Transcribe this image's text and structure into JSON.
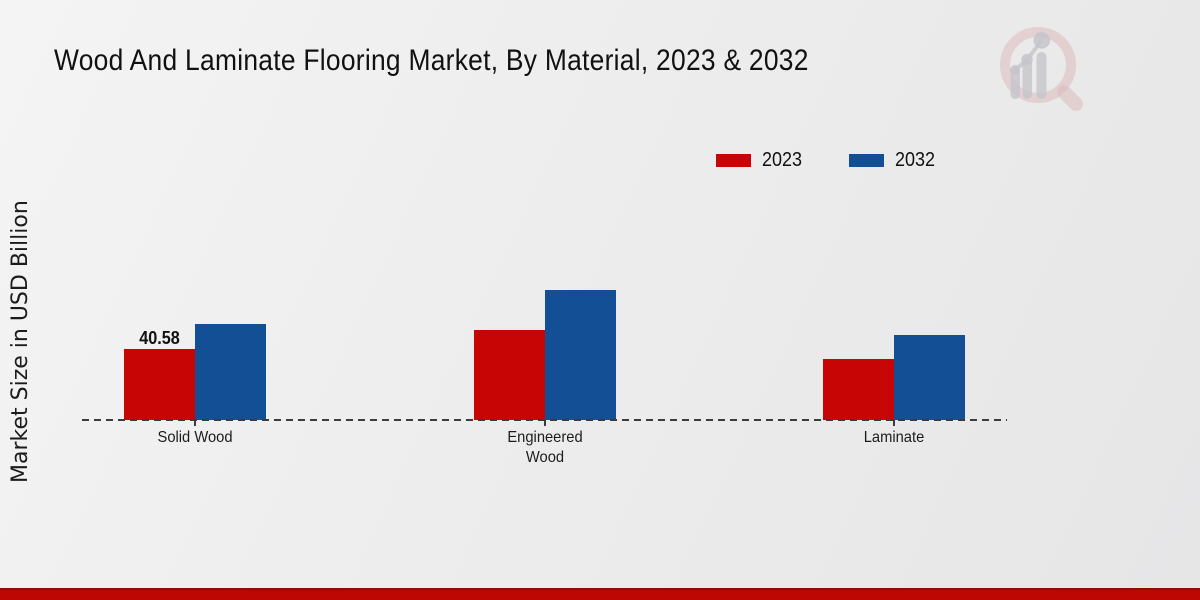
{
  "title": "Wood And Laminate Flooring Market, By Material, 2023 & 2032",
  "ylabel": "Market Size in USD Billion",
  "legend": [
    {
      "label": "2023",
      "color": "#c80505"
    },
    {
      "label": "2032",
      "color": "#124f94"
    }
  ],
  "colors": {
    "red_2023": "#c80505",
    "blue_2032": "#124f94",
    "baseline": "#3c3c3c",
    "bottom_strip": "#bd0702",
    "background": "#ececec"
  },
  "watermark_icon": "magnifier-bar-chart-logo",
  "chart_data": {
    "type": "bar",
    "categories": [
      "Solid Wood",
      "Engineered Wood",
      "Laminate"
    ],
    "series": [
      {
        "name": "2023",
        "color": "#c80505",
        "values": [
          40.58,
          51.4,
          34.9
        ],
        "value_labels": [
          "40.58",
          null,
          null
        ]
      },
      {
        "name": "2032",
        "color": "#124f94",
        "values": [
          54.9,
          74.3,
          48.6
        ],
        "value_labels": [
          null,
          null,
          null
        ]
      }
    ],
    "title": "Wood And Laminate Flooring Market, By Material, 2023 & 2032",
    "xlabel": "",
    "ylabel": "Market Size in USD Billion",
    "ylim": [
      0,
      80
    ],
    "grid": false,
    "legend_position": "top-right",
    "baseline_style": "dashed"
  }
}
